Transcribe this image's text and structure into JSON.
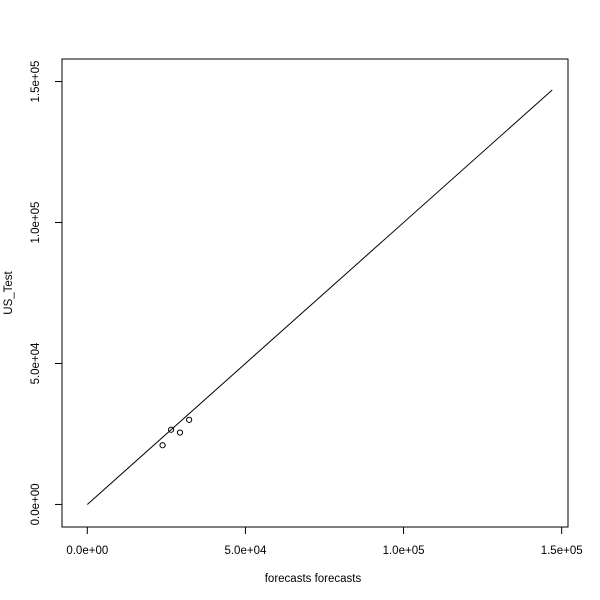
{
  "chart_data": {
    "type": "scatter",
    "title": "",
    "xlabel": "forecasts forecasts",
    "ylabel": "US_Test",
    "xlim": [
      -8000,
      152000
    ],
    "ylim": [
      -8000,
      158000
    ],
    "x_ticks": [
      {
        "value": 0,
        "label": "0.0e+00"
      },
      {
        "value": 50000,
        "label": "5.0e+04"
      },
      {
        "value": 100000,
        "label": "1.0e+05"
      },
      {
        "value": 150000,
        "label": "1.5e+05"
      }
    ],
    "y_ticks": [
      {
        "value": 0,
        "label": "0.0e+00"
      },
      {
        "value": 50000,
        "label": "5.0e+04"
      },
      {
        "value": 100000,
        "label": "1.0e+05"
      },
      {
        "value": 150000,
        "label": "1.5e+05"
      }
    ],
    "points": [
      {
        "x": 23800,
        "y": 21000
      },
      {
        "x": 26500,
        "y": 26500
      },
      {
        "x": 29300,
        "y": 25500
      },
      {
        "x": 32200,
        "y": 30000
      }
    ],
    "reference_line": [
      {
        "x": 0,
        "y": 0
      },
      {
        "x": 147000,
        "y": 147000
      }
    ],
    "grid": false,
    "legend": "none",
    "point_style": "open-circle",
    "color": "#000000"
  }
}
